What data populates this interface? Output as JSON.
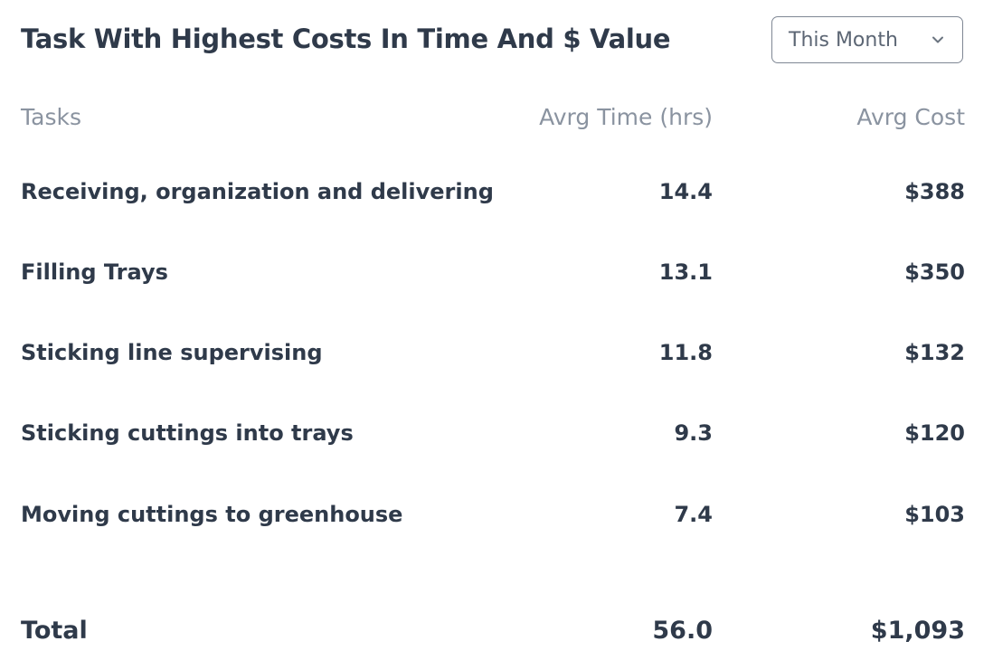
{
  "card": {
    "title": "Task With Highest Costs In Time And $ Value",
    "period_select": {
      "selected": "This Month",
      "icon": "chevron-down-icon"
    }
  },
  "table": {
    "headers": [
      "Tasks",
      "Avrg Time (hrs)",
      "Avrg Cost"
    ],
    "rows": [
      {
        "task": "Receiving, organization and delivering",
        "time": "14.4",
        "cost": "$388"
      },
      {
        "task": "Filling Trays",
        "time": "13.1",
        "cost": "$350"
      },
      {
        "task": "Sticking line supervising",
        "time": "11.8",
        "cost": "$132"
      },
      {
        "task": "Sticking cuttings into trays",
        "time": "9.3",
        "cost": "$120"
      },
      {
        "task": "Moving cuttings to greenhouse",
        "time": "7.4",
        "cost": "$103"
      }
    ],
    "total": {
      "label": "Total",
      "time": "56.0",
      "cost": "$1,093"
    }
  },
  "colors": {
    "text": "#2f3a4a",
    "muted": "#8a93a0",
    "border": "#7f8794"
  }
}
